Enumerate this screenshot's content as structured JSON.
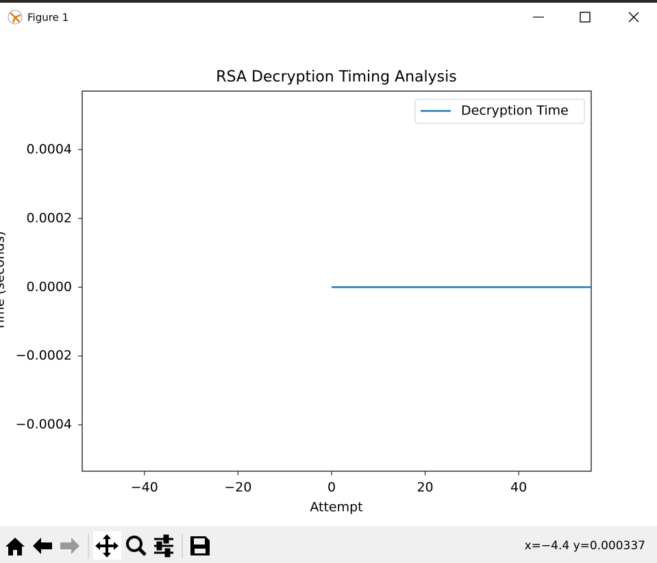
{
  "window": {
    "title": "Figure 1",
    "status": "x=−4.4 y=0.000337"
  },
  "chart_data": {
    "type": "line",
    "title": "RSA Decryption Timing Analysis",
    "x_label": "Attempt",
    "y_label": "Time (seconds)",
    "x": [
      0,
      55.5
    ],
    "series": [
      {
        "name": "Decryption Time",
        "color": "#1f77b4",
        "values": [
          0,
          0
        ]
      }
    ],
    "xlim": [
      -53.3,
      55.5
    ],
    "xticks": [
      {
        "value": -40,
        "label": "−40"
      },
      {
        "value": -20,
        "label": "−20"
      },
      0,
      20,
      40
    ],
    "ylim": [
      -0.000535,
      0.00057
    ],
    "yticks": [
      {
        "value": -0.0004,
        "label": "−0.0004"
      },
      {
        "value": -0.0002,
        "label": "−0.0002"
      },
      {
        "value": 0,
        "label": "0.0000"
      },
      0.0002,
      0.0004
    ],
    "legend": "upper right",
    "grid": false
  }
}
